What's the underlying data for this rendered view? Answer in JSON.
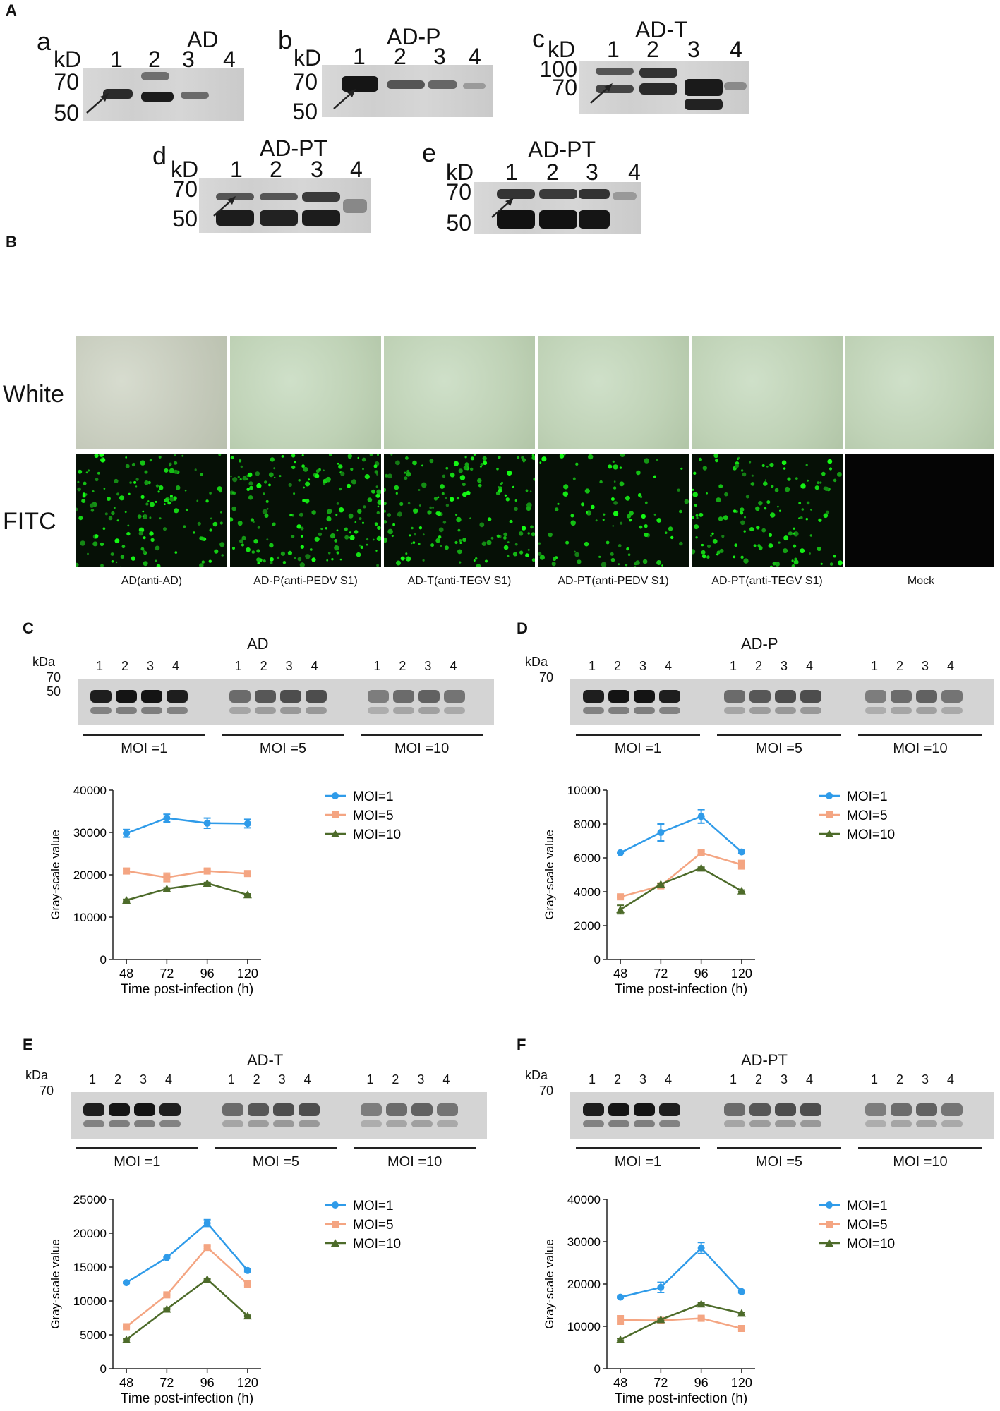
{
  "panelA": {
    "label": "A",
    "blots": [
      {
        "letter": "a",
        "title": "AD",
        "kd": "kD",
        "lanes": [
          "1",
          "2",
          "3",
          "4"
        ],
        "markers": [
          "70",
          "50"
        ]
      },
      {
        "letter": "b",
        "title": "AD-P",
        "kd": "kD",
        "lanes": [
          "1",
          "2",
          "3",
          "4"
        ],
        "markers": [
          "70",
          "50"
        ]
      },
      {
        "letter": "c",
        "title": "AD-T",
        "kd": "kD",
        "lanes": [
          "1",
          "2",
          "3",
          "4"
        ],
        "markers": [
          "100",
          "70"
        ]
      },
      {
        "letter": "d",
        "title": "AD-PT",
        "kd": "kD",
        "lanes": [
          "1",
          "2",
          "3",
          "4"
        ],
        "markers": [
          "70",
          "50"
        ]
      },
      {
        "letter": "e",
        "title": "AD-PT",
        "kd": "kD",
        "lanes": [
          "1",
          "2",
          "3",
          "4"
        ],
        "markers": [
          "70",
          "50"
        ]
      }
    ]
  },
  "panelB": {
    "label": "B",
    "rows": [
      "White",
      "FITC"
    ],
    "captions": [
      "AD(anti-AD)",
      "AD-P(anti-PEDV S1)",
      "AD-T(anti-TEGV S1)",
      "AD-PT(anti-PEDV S1)",
      "AD-PT(anti-TEGV S1)",
      "Mock"
    ]
  },
  "panels": [
    {
      "label": "C",
      "title": "AD",
      "kda": "kDa",
      "markers": [
        "70",
        "50"
      ],
      "lanes": [
        "1",
        "2",
        "3",
        "4"
      ],
      "mois": [
        "MOI =1",
        "MOI =5",
        "MOI =10"
      ]
    },
    {
      "label": "D",
      "title": "AD-P",
      "kda": "kDa",
      "markers": [
        "70"
      ],
      "lanes": [
        "1",
        "2",
        "3",
        "4"
      ],
      "mois": [
        "MOI =1",
        "MOI =5",
        "MOI =10"
      ]
    },
    {
      "label": "E",
      "title": "AD-T",
      "kda": "kDa",
      "markers": [
        "70"
      ],
      "lanes": [
        "1",
        "2",
        "3",
        "4"
      ],
      "mois": [
        "MOI =1",
        "MOI =5",
        "MOI =10"
      ]
    },
    {
      "label": "F",
      "title": "AD-PT",
      "kda": "kDa",
      "markers": [
        "70"
      ],
      "lanes": [
        "1",
        "2",
        "3",
        "4"
      ],
      "mois": [
        "MOI =1",
        "MOI =5",
        "MOI =10"
      ]
    }
  ],
  "colors": {
    "moi1": "#2f9be9",
    "moi5": "#f4a582",
    "moi10": "#4d6b2a"
  },
  "chart_data": [
    {
      "type": "line",
      "panel": "C",
      "xlabel": "Time post-infection (h)",
      "ylabel": "Gray-scale value",
      "x": [
        48,
        72,
        96,
        120
      ],
      "ylim": [
        0,
        40000
      ],
      "yticks": [
        0,
        10000,
        20000,
        30000,
        40000
      ],
      "series": [
        {
          "name": "MOI=1",
          "values": [
            29800,
            33400,
            32200,
            32100
          ],
          "err": [
            900,
            900,
            1200,
            1000
          ]
        },
        {
          "name": "MOI=5",
          "values": [
            20900,
            19400,
            20900,
            20300
          ],
          "err": [
            600,
            1000,
            400,
            300
          ]
        },
        {
          "name": "MOI=10",
          "values": [
            14000,
            16700,
            18000,
            15300
          ],
          "err": [
            200,
            200,
            200,
            200
          ]
        }
      ]
    },
    {
      "type": "line",
      "panel": "D",
      "xlabel": "Time post-infection (h)",
      "ylabel": "Gray-scale value",
      "x": [
        48,
        72,
        96,
        120
      ],
      "ylim": [
        0,
        10000
      ],
      "yticks": [
        0,
        2000,
        4000,
        6000,
        8000,
        10000
      ],
      "series": [
        {
          "name": "MOI=1",
          "values": [
            6300,
            7500,
            8450,
            6350
          ],
          "err": [
            50,
            500,
            400,
            100
          ]
        },
        {
          "name": "MOI=5",
          "values": [
            3700,
            4350,
            6300,
            5600
          ],
          "err": [
            50,
            150,
            100,
            250
          ]
        },
        {
          "name": "MOI=10",
          "values": [
            2950,
            4450,
            5400,
            4050
          ],
          "err": [
            250,
            50,
            50,
            50
          ]
        }
      ]
    },
    {
      "type": "line",
      "panel": "E",
      "xlabel": "Time post-infection (h)",
      "ylabel": "Gray-scale value",
      "x": [
        48,
        72,
        96,
        120
      ],
      "ylim": [
        0,
        25000
      ],
      "yticks": [
        0,
        5000,
        10000,
        15000,
        20000,
        25000
      ],
      "series": [
        {
          "name": "MOI=1",
          "values": [
            12700,
            16400,
            21500,
            14500
          ],
          "err": [
            100,
            100,
            500,
            200
          ]
        },
        {
          "name": "MOI=5",
          "values": [
            6200,
            10900,
            17900,
            12500
          ],
          "err": [
            100,
            100,
            200,
            200
          ]
        },
        {
          "name": "MOI=10",
          "values": [
            4300,
            8800,
            13200,
            7800
          ],
          "err": [
            100,
            100,
            100,
            100
          ]
        }
      ]
    },
    {
      "type": "line",
      "panel": "F",
      "xlabel": "Time post-infection (h)",
      "ylabel": "Gray-scale value",
      "x": [
        48,
        72,
        96,
        120
      ],
      "ylim": [
        0,
        40000
      ],
      "yticks": [
        0,
        10000,
        20000,
        30000,
        40000
      ],
      "series": [
        {
          "name": "MOI=1",
          "values": [
            16900,
            19200,
            28500,
            18200
          ],
          "err": [
            200,
            1200,
            1300,
            300
          ]
        },
        {
          "name": "MOI=5",
          "values": [
            11500,
            11400,
            11900,
            9500
          ],
          "err": [
            1000,
            200,
            200,
            200
          ]
        },
        {
          "name": "MOI=10",
          "values": [
            6900,
            11600,
            15300,
            13100
          ],
          "err": [
            200,
            200,
            200,
            200
          ]
        }
      ]
    }
  ]
}
